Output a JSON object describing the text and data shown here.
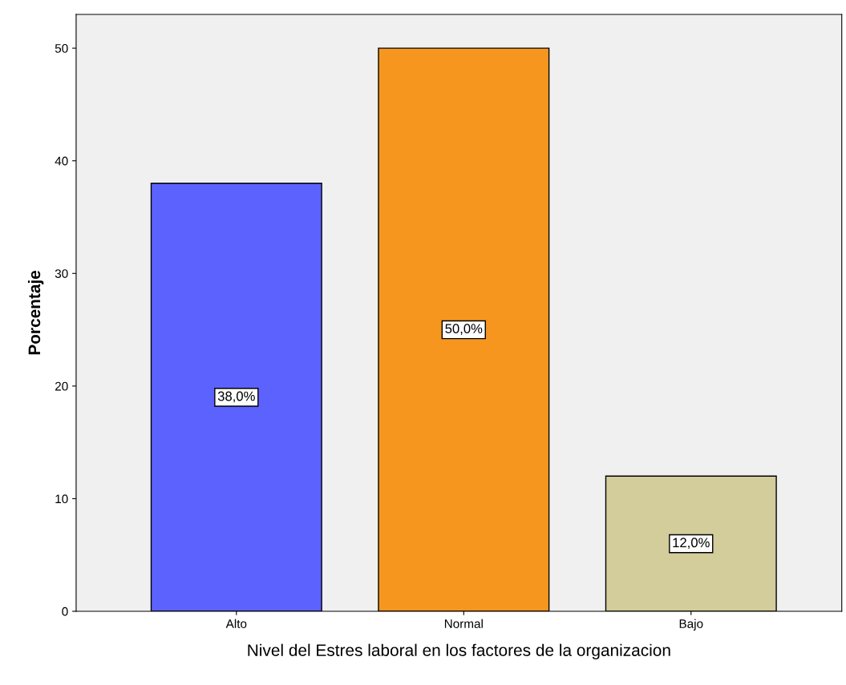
{
  "chart_data": {
    "type": "bar",
    "xlabel": "Nivel del Estres laboral en los factores de la organizacion",
    "ylabel": "Porcentaje",
    "categories": [
      "Alto",
      "Normal",
      "Bajo"
    ],
    "values": [
      38,
      50,
      12
    ],
    "colors": [
      "#5c62fe",
      "#f7961f",
      "#d3cc9b"
    ],
    "value_labels": [
      "38,0%",
      "50,0%",
      "12,0%"
    ],
    "ylim": [
      0,
      53
    ],
    "yticks": [
      0,
      10,
      20,
      30,
      40,
      50
    ],
    "grid": false,
    "legend": false
  }
}
